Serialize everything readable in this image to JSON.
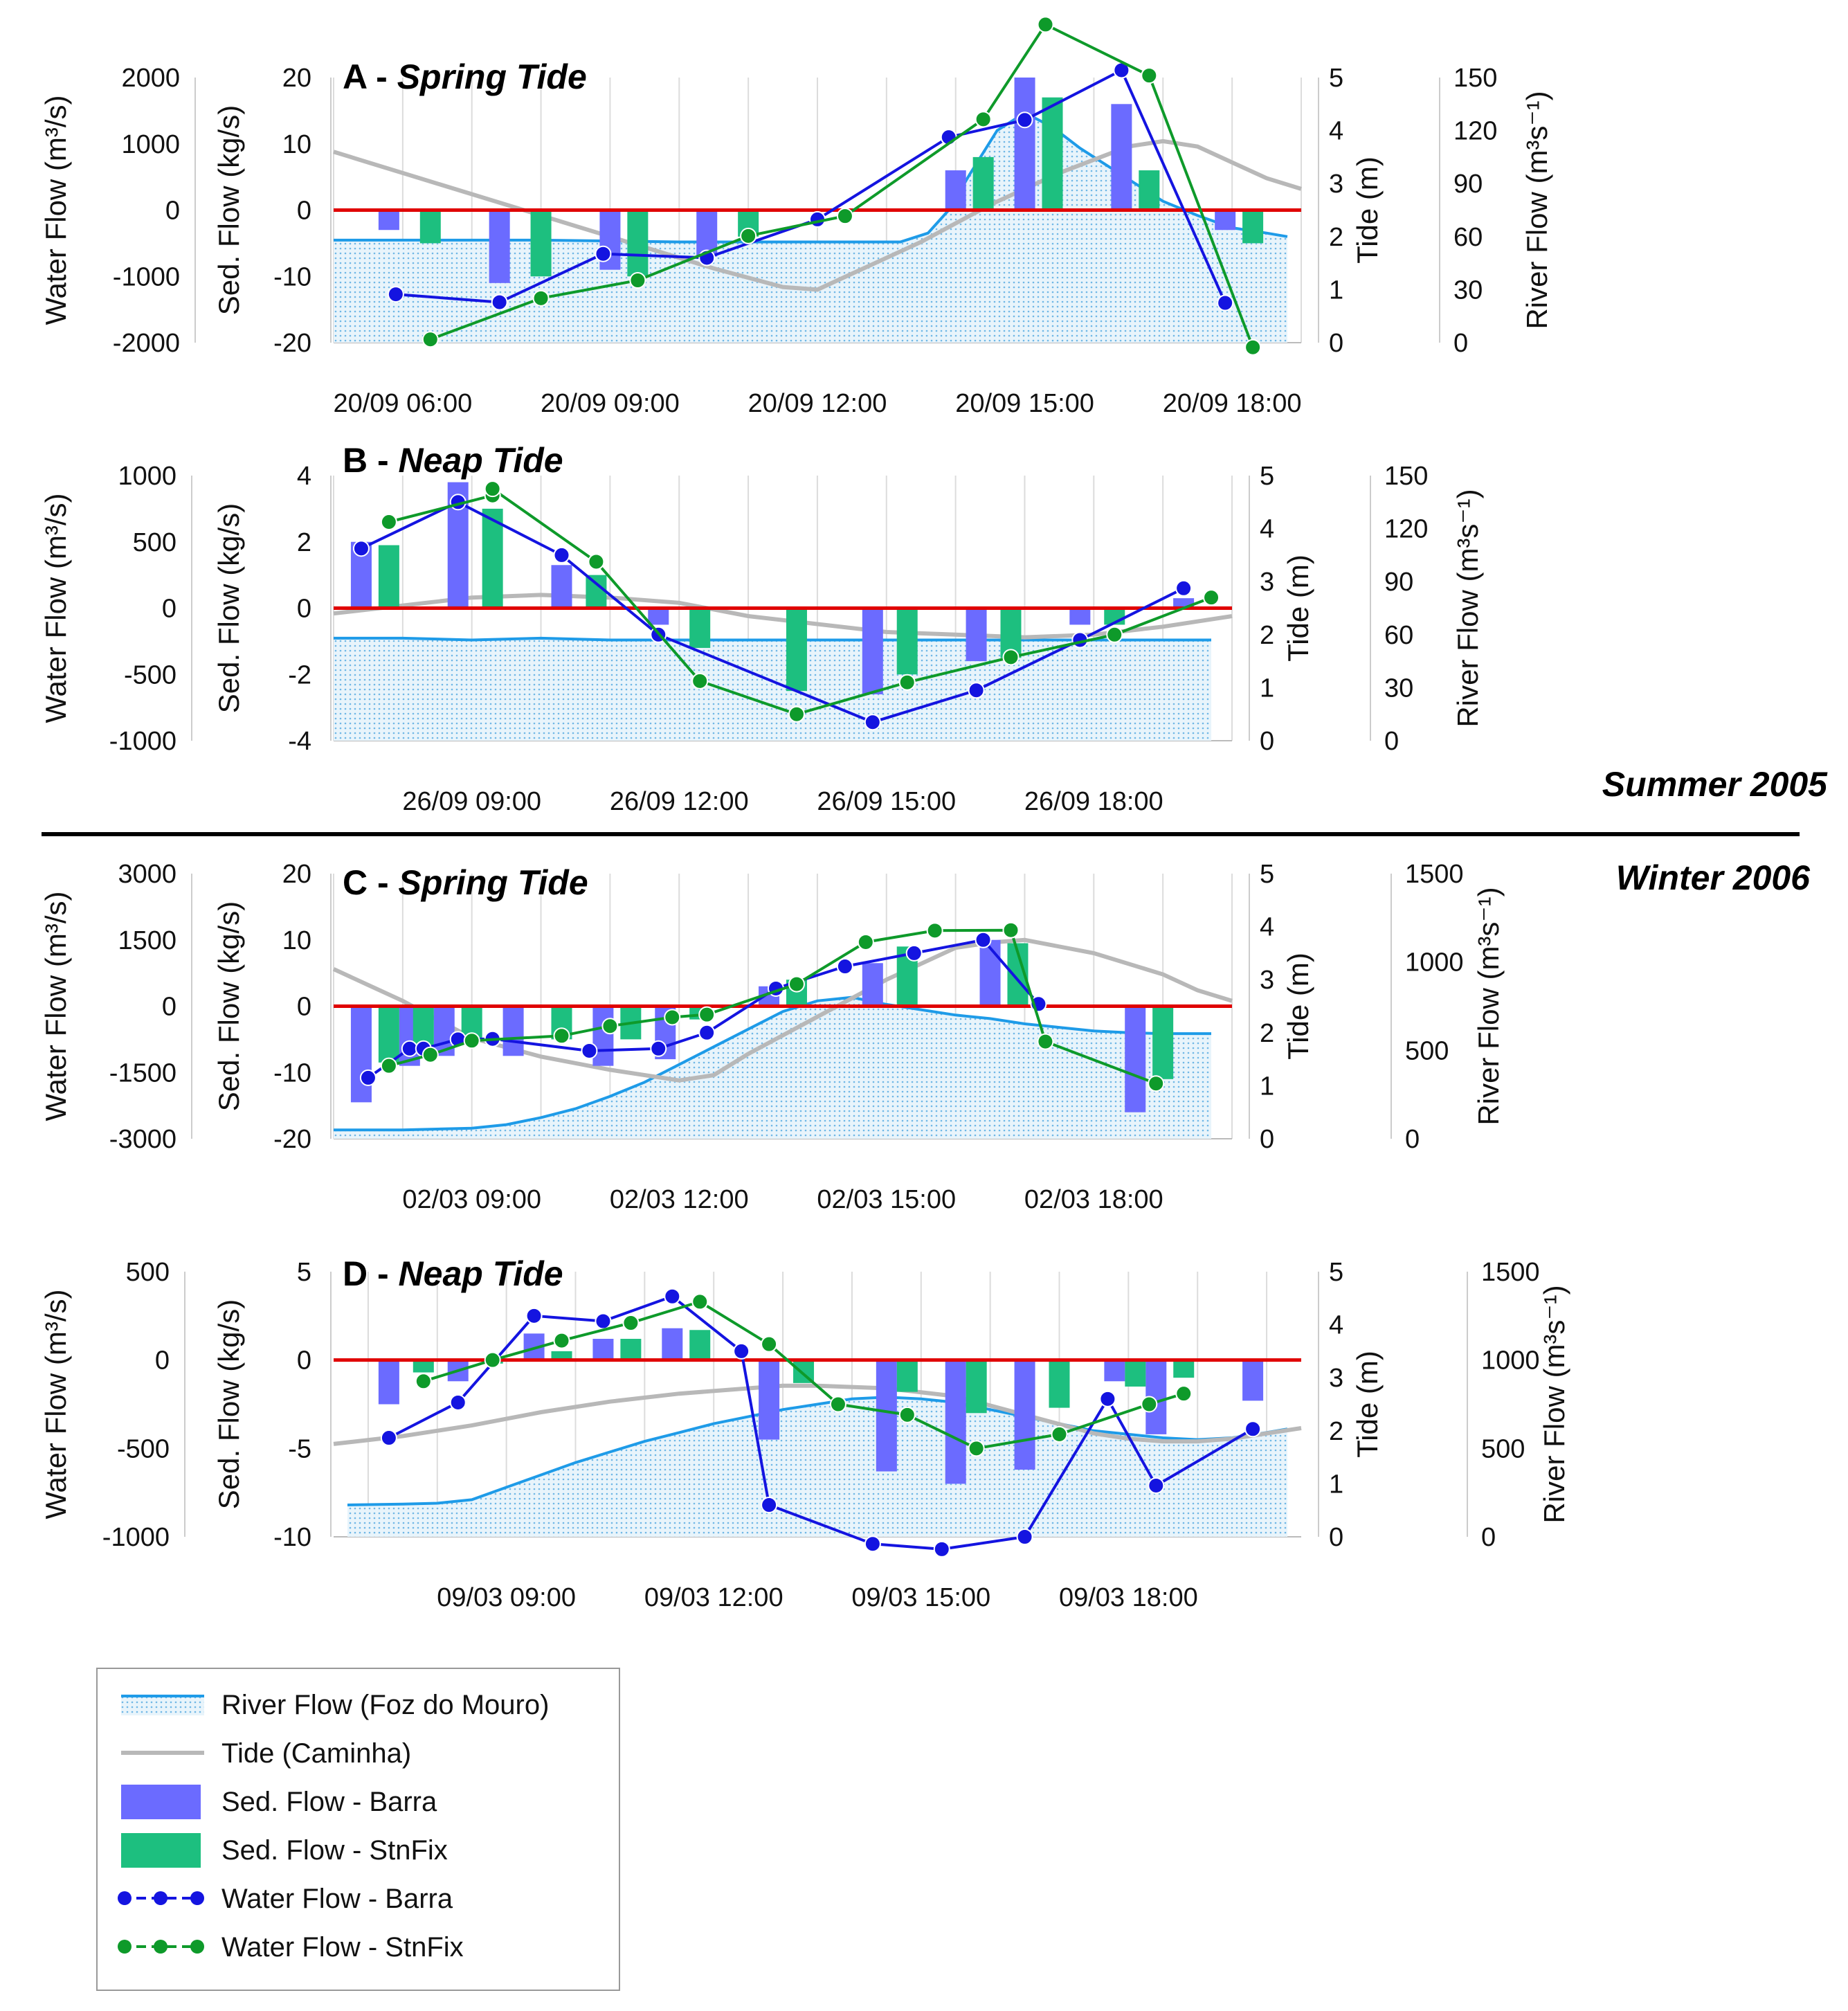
{
  "figure": {
    "season_summer": "Summer 2005",
    "season_winter": "Winter 2006"
  },
  "colors": {
    "river": "#1e9be8",
    "river_fill": "#cfe8f6",
    "tide": "#b8b8b8",
    "bar_barra": "#6b6bff",
    "bar_stnfix": "#1dbf7f",
    "line_barra": "#1414e0",
    "line_stnfix": "#0e9a2a",
    "zero_line": "#e00000"
  },
  "legend": {
    "items": [
      {
        "key": "river",
        "label": "River Flow (Foz do Mouro)",
        "icon": "line-with-dotted-fill"
      },
      {
        "key": "tide",
        "label": "Tide (Caminha)",
        "icon": "gray-line"
      },
      {
        "key": "bar_barra",
        "label": "Sed. Flow -  Barra",
        "icon": "blue-bar"
      },
      {
        "key": "bar_stnfix",
        "label": "Sed. Flow - StnFix",
        "icon": "green-bar"
      },
      {
        "key": "line_barra",
        "label": "Water Flow - Barra",
        "icon": "blue-dot-line"
      },
      {
        "key": "line_stnfix",
        "label": "Water Flow - StnFix",
        "icon": "green-dot-line"
      }
    ]
  },
  "chart_data": [
    {
      "id": "A",
      "type": "bar+line",
      "title_letter": "A - ",
      "title_text": "Spring Tide",
      "xlabel": "",
      "x_range_hours": [
        5.0,
        19.0
      ],
      "x_ticks": [
        {
          "t": 6,
          "label": "20/09 06:00"
        },
        {
          "t": 9,
          "label": "20/09 09:00"
        },
        {
          "t": 12,
          "label": "20/09 12:00"
        },
        {
          "t": 15,
          "label": "20/09 15:00"
        },
        {
          "t": 18,
          "label": "20/09 18:00"
        }
      ],
      "water_axis": {
        "label": "Water Flow (m³/s)",
        "range": [
          -2000,
          2000
        ],
        "ticks": [
          2000,
          1000,
          0,
          -1000,
          -2000
        ]
      },
      "sed_axis": {
        "label": "Sed. Flow (kg/s)",
        "range": [
          -20,
          20
        ],
        "ticks": [
          20,
          10,
          0,
          -10,
          -20
        ]
      },
      "tide_axis": {
        "label": "Tide (m)",
        "range": [
          0,
          5
        ],
        "ticks": [
          5,
          4,
          3,
          2,
          1,
          0
        ]
      },
      "river_axis": {
        "label": "River Flow (m³s⁻¹)",
        "range": [
          0,
          150
        ],
        "ticks": [
          150,
          120,
          90,
          60,
          30,
          0
        ]
      },
      "sed_barra": {
        "t": [
          5.8,
          7.4,
          9.0,
          10.4,
          14.0,
          15.0,
          16.4,
          17.9
        ],
        "v": [
          -3,
          -11,
          -9,
          -7,
          6,
          20,
          16,
          -3
        ]
      },
      "sed_stnfix": {
        "t": [
          6.4,
          8.0,
          9.4,
          11.0,
          14.4,
          15.4,
          16.8,
          18.3
        ],
        "v": [
          -5,
          -10,
          -10,
          -4,
          8,
          17,
          6,
          -5
        ]
      },
      "water_barra": {
        "t": [
          5.9,
          7.4,
          8.9,
          10.4,
          12.0,
          13.9,
          15.0,
          16.4,
          17.9
        ],
        "v": [
          -1270,
          -1390,
          -660,
          -720,
          -140,
          1100,
          1360,
          2110,
          -1400
        ]
      },
      "water_stnfix": {
        "t": [
          6.4,
          8.0,
          9.4,
          11.0,
          12.4,
          14.4,
          15.3,
          16.8,
          18.3
        ],
        "v": [
          -1950,
          -1330,
          -1060,
          -390,
          -90,
          1370,
          2800,
          2030,
          -2070
        ]
      },
      "river": {
        "t": [
          5.0,
          6.0,
          8.0,
          10.0,
          12.0,
          13.2,
          13.6,
          13.9,
          14.2,
          14.6,
          15.0,
          15.4,
          15.8,
          16.2,
          16.6,
          17.0,
          17.5,
          18.0,
          18.5,
          18.8
        ],
        "v": [
          58,
          58,
          58,
          57,
          57,
          57,
          62,
          75,
          95,
          120,
          130,
          122,
          110,
          100,
          90,
          80,
          72,
          65,
          62,
          60
        ]
      },
      "tide": {
        "t": [
          5.0,
          5.5,
          6.5,
          7.5,
          8.5,
          9.5,
          10.5,
          11.5,
          12.0,
          12.5,
          13.5,
          14.5,
          15.5,
          16.5,
          17.0,
          17.5,
          18.0,
          18.5,
          19.0
        ],
        "v": [
          3.6,
          3.4,
          3.0,
          2.6,
          2.2,
          1.8,
          1.4,
          1.05,
          1.0,
          1.3,
          1.9,
          2.6,
          3.2,
          3.7,
          3.8,
          3.7,
          3.4,
          3.1,
          2.9
        ]
      }
    },
    {
      "id": "B",
      "type": "bar+line",
      "title_letter": "B - ",
      "title_text": "Neap Tide",
      "xlabel": "",
      "x_range_hours": [
        7.0,
        20.0
      ],
      "x_ticks": [
        {
          "t": 9,
          "label": "26/09 09:00"
        },
        {
          "t": 12,
          "label": "26/09 12:00"
        },
        {
          "t": 15,
          "label": "26/09 15:00"
        },
        {
          "t": 18,
          "label": "26/09 18:00"
        }
      ],
      "water_axis": {
        "label": "Water Flow (m³/s)",
        "range": [
          -1000,
          1000
        ],
        "ticks": [
          1000,
          500,
          0,
          -500,
          -1000
        ]
      },
      "sed_axis": {
        "label": "Sed. Flow (kg/s)",
        "range": [
          -4,
          4
        ],
        "ticks": [
          4,
          2,
          0,
          -2,
          -4
        ]
      },
      "tide_axis": {
        "label": "Tide (m)",
        "range": [
          0,
          5
        ],
        "ticks": [
          5,
          4,
          3,
          2,
          1,
          0
        ]
      },
      "river_axis": {
        "label": "River Flow (m³s⁻¹)",
        "range": [
          0,
          150
        ],
        "ticks": [
          150,
          120,
          90,
          60,
          30,
          0
        ]
      },
      "sed_barra": {
        "t": [
          7.4,
          8.8,
          10.3,
          11.7,
          14.8,
          16.3,
          17.8,
          19.3
        ],
        "v": [
          2.0,
          3.8,
          1.3,
          -0.5,
          -2.6,
          -1.6,
          -0.5,
          0.3
        ]
      },
      "sed_stnfix": {
        "t": [
          7.8,
          9.3,
          10.8,
          12.3,
          13.7,
          15.3,
          16.8,
          18.3
        ],
        "v": [
          1.9,
          3.0,
          1.0,
          -1.2,
          -2.5,
          -2.0,
          -1.5,
          -0.5
        ]
      },
      "water_barra": {
        "t": [
          7.4,
          8.8,
          10.3,
          11.7,
          14.8,
          16.3,
          17.8,
          19.3
        ],
        "v": [
          450,
          800,
          400,
          -200,
          -860,
          -620,
          -240,
          150
        ]
      },
      "water_stnfix": {
        "t": [
          7.8,
          9.3,
          9.3,
          10.8,
          12.3,
          13.7,
          15.3,
          16.8,
          18.3,
          19.7
        ],
        "v": [
          650,
          850,
          900,
          350,
          -550,
          -800,
          -560,
          -370,
          -200,
          80
        ]
      },
      "river": {
        "t": [
          7.0,
          8.0,
          9.0,
          10.0,
          11.0,
          12.0,
          13.0,
          14.0,
          15.0,
          16.0,
          17.0,
          18.0,
          19.0,
          19.7
        ],
        "v": [
          58,
          58,
          57,
          58,
          57,
          57,
          57,
          57,
          57,
          57,
          57,
          57,
          57,
          57
        ]
      },
      "tide": {
        "t": [
          7.0,
          8.0,
          9.0,
          10.0,
          11.0,
          12.0,
          13.0,
          14.0,
          15.0,
          16.0,
          17.0,
          18.0,
          19.0,
          20.0
        ],
        "v": [
          2.4,
          2.55,
          2.7,
          2.75,
          2.7,
          2.6,
          2.35,
          2.2,
          2.05,
          2.0,
          1.95,
          2.0,
          2.15,
          2.35
        ]
      }
    },
    {
      "id": "C",
      "type": "bar+line",
      "title_letter": "C - ",
      "title_text": "Spring Tide",
      "xlabel": "",
      "x_range_hours": [
        7.0,
        20.0
      ],
      "x_ticks": [
        {
          "t": 9,
          "label": "02/03 09:00"
        },
        {
          "t": 12,
          "label": "02/03 12:00"
        },
        {
          "t": 15,
          "label": "02/03 15:00"
        },
        {
          "t": 18,
          "label": "02/03 18:00"
        }
      ],
      "water_axis": {
        "label": "Water Flow (m³/s)",
        "range": [
          -3000,
          3000
        ],
        "ticks": [
          3000,
          1500,
          0,
          -1500,
          -3000
        ]
      },
      "sed_axis": {
        "label": "Sed. Flow (kg/s)",
        "range": [
          -20,
          20
        ],
        "ticks": [
          20,
          10,
          0,
          -10,
          -20
        ]
      },
      "tide_axis": {
        "label": "Tide (m)",
        "range": [
          0,
          5
        ],
        "ticks": [
          5,
          4,
          3,
          2,
          1,
          0
        ]
      },
      "river_axis": {
        "label": "River Flow (m³s⁻¹)",
        "range": [
          0,
          1500
        ],
        "ticks": [
          1500,
          1000,
          500,
          0
        ]
      },
      "sed_barra": {
        "t": [
          7.4,
          8.1,
          8.6,
          9.6,
          10.9,
          11.8,
          13.3,
          14.8,
          16.5,
          18.6
        ],
        "v": [
          -14.5,
          -9,
          -7.5,
          -7.5,
          -9,
          -8,
          3,
          6.5,
          10,
          -16
        ]
      },
      "sed_stnfix": {
        "t": [
          7.8,
          8.3,
          9.0,
          10.3,
          11.3,
          12.3,
          13.7,
          15.3,
          16.9,
          19.0
        ],
        "v": [
          -8.5,
          -7,
          -5,
          -5,
          -5,
          -2,
          4,
          9,
          9.5,
          -11
        ]
      },
      "water_barra": {
        "t": [
          7.5,
          8.1,
          8.3,
          8.8,
          9.3,
          10.7,
          11.7,
          12.4,
          13.4,
          14.4,
          15.4,
          16.4,
          17.2
        ],
        "v": [
          -1620,
          -960,
          -960,
          -750,
          -740,
          -1010,
          -960,
          -600,
          400,
          900,
          1200,
          1500,
          50
        ]
      },
      "water_stnfix": {
        "t": [
          7.8,
          8.4,
          9.0,
          10.3,
          11.0,
          11.9,
          12.4,
          13.7,
          14.7,
          15.7,
          16.8,
          17.3,
          18.9
        ],
        "v": [
          -1350,
          -1100,
          -780,
          -670,
          -450,
          -250,
          -190,
          500,
          1450,
          1710,
          1720,
          -800,
          -1750
        ]
      },
      "river": {
        "t": [
          7.0,
          8.0,
          9.0,
          9.5,
          10.0,
          10.5,
          11.0,
          11.5,
          12.0,
          12.5,
          13.0,
          13.5,
          14.0,
          14.5,
          15.0,
          15.5,
          16.0,
          16.5,
          17.0,
          17.5,
          18.0,
          18.5,
          19.0,
          19.7
        ],
        "v": [
          50,
          50,
          60,
          80,
          120,
          170,
          240,
          320,
          420,
          520,
          620,
          720,
          780,
          800,
          760,
          730,
          700,
          680,
          650,
          630,
          610,
          600,
          595,
          595
        ]
      },
      "tide": {
        "t": [
          7.0,
          7.5,
          8.0,
          8.5,
          9.0,
          10.0,
          11.0,
          12.0,
          12.5,
          13.0,
          14.0,
          15.0,
          16.0,
          16.5,
          17.0,
          18.0,
          19.0,
          19.5,
          20.0
        ],
        "v": [
          3.2,
          2.9,
          2.6,
          2.25,
          1.9,
          1.55,
          1.3,
          1.1,
          1.2,
          1.6,
          2.3,
          3.0,
          3.6,
          3.7,
          3.75,
          3.5,
          3.1,
          2.8,
          2.6
        ]
      }
    },
    {
      "id": "D",
      "type": "bar+line",
      "title_letter": "D - ",
      "title_text": "Neap Tide",
      "xlabel": "",
      "x_range_hours": [
        6.5,
        20.5
      ],
      "x_ticks": [
        {
          "t": 9,
          "label": "09/03 09:00"
        },
        {
          "t": 12,
          "label": "09/03 12:00"
        },
        {
          "t": 15,
          "label": "09/03 15:00"
        },
        {
          "t": 18,
          "label": "09/03 18:00"
        }
      ],
      "water_axis": {
        "label": "Water Flow (m³/s)",
        "range": [
          -1000,
          500
        ],
        "ticks": [
          500,
          0,
          -500,
          -1000
        ]
      },
      "sed_axis": {
        "label": "Sed. Flow (kg/s)",
        "range": [
          -10,
          5
        ],
        "ticks": [
          5,
          0,
          -5,
          -10
        ]
      },
      "tide_axis": {
        "label": "Tide (m)",
        "range": [
          0,
          5
        ],
        "ticks": [
          5,
          4,
          3,
          2,
          1,
          0
        ]
      },
      "river_axis": {
        "label": "River Flow (m³s⁻¹)",
        "range": [
          0,
          1500
        ],
        "ticks": [
          1500,
          1000,
          500,
          0
        ]
      },
      "sed_barra": {
        "t": [
          7.3,
          8.3,
          9.4,
          10.4,
          11.4,
          12.8,
          14.5,
          15.5,
          16.5,
          17.8,
          18.4,
          19.8
        ],
        "v": [
          -2.5,
          -1.2,
          1.5,
          1.2,
          1.8,
          -4.5,
          -6.3,
          -7.0,
          -6.2,
          -1.2,
          -4.2,
          -2.3
        ]
      },
      "sed_stnfix": {
        "t": [
          7.8,
          8.8,
          9.8,
          10.8,
          11.8,
          13.3,
          14.8,
          15.8,
          17.0,
          18.1,
          18.8
        ],
        "v": [
          -0.7,
          -0.2,
          0.5,
          1.2,
          1.7,
          -1.3,
          -1.8,
          -3.0,
          -2.7,
          -1.5,
          -1.0
        ]
      },
      "water_barra": {
        "t": [
          7.3,
          8.3,
          9.4,
          10.4,
          11.4,
          12.4,
          12.8,
          14.3,
          15.3,
          16.5,
          17.7,
          18.4,
          19.8
        ],
        "v": [
          -440,
          -240,
          250,
          220,
          360,
          50,
          -820,
          -1040,
          -1070,
          -1000,
          -220,
          -710,
          -390
        ]
      },
      "water_stnfix": {
        "t": [
          7.8,
          8.8,
          9.8,
          10.8,
          11.8,
          12.8,
          13.8,
          14.8,
          15.8,
          17.0,
          18.3,
          18.8
        ],
        "v": [
          -120,
          0,
          110,
          210,
          330,
          90,
          -250,
          -310,
          -500,
          -420,
          -250,
          -190
        ]
      },
      "river": {
        "t": [
          6.7,
          7.5,
          8.0,
          8.5,
          9.0,
          9.5,
          10.0,
          10.5,
          11.0,
          11.5,
          12.0,
          12.5,
          13.0,
          13.5,
          14.0,
          14.5,
          15.0,
          15.5,
          16.0,
          16.5,
          17.0,
          17.5,
          18.0,
          18.5,
          19.0,
          19.5,
          20.0,
          20.3
        ],
        "v": [
          180,
          185,
          190,
          210,
          280,
          350,
          420,
          480,
          540,
          590,
          640,
          680,
          720,
          750,
          780,
          790,
          780,
          760,
          720,
          680,
          640,
          600,
          580,
          560,
          550,
          560,
          590,
          610
        ]
      },
      "tide": {
        "t": [
          6.5,
          7.5,
          8.5,
          9.5,
          10.5,
          11.5,
          12.5,
          13.0,
          13.5,
          14.5,
          15.5,
          16.5,
          17.5,
          18.0,
          18.5,
          19.0,
          19.5,
          20.0,
          20.5
        ],
        "v": [
          1.75,
          1.9,
          2.1,
          2.35,
          2.55,
          2.7,
          2.8,
          2.85,
          2.85,
          2.8,
          2.65,
          2.3,
          1.95,
          1.85,
          1.8,
          1.8,
          1.85,
          1.95,
          2.05
        ]
      }
    }
  ]
}
